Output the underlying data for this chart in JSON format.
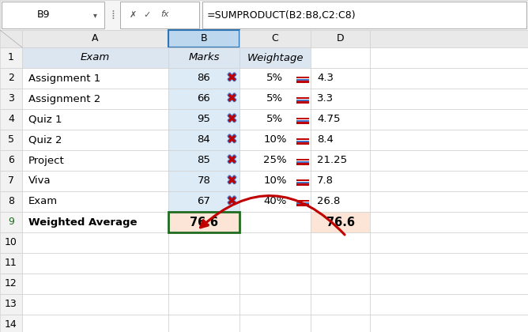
{
  "formula_bar_cell": "B9",
  "formula_bar_formula": "=SUMPRODUCT(B2:B8,C2:C8)",
  "header_row": [
    "Exam",
    "Marks",
    "Weightage",
    ""
  ],
  "data_rows": [
    [
      "Assignment 1",
      "86",
      "5%",
      "4.3"
    ],
    [
      "Assignment 2",
      "66",
      "5%",
      "3.3"
    ],
    [
      "Quiz 1",
      "95",
      "5%",
      "4.75"
    ],
    [
      "Quiz 2",
      "84",
      "10%",
      "8.4"
    ],
    [
      "Project",
      "85",
      "25%",
      "21.25"
    ],
    [
      "Viva",
      "78",
      "10%",
      "7.8"
    ],
    [
      "Exam",
      "67",
      "40%",
      "26.8"
    ]
  ],
  "weighted_avg": "76.6",
  "bg_header_blue": "#dce6f1",
  "bg_col_B_header": "#bdd7ee",
  "bg_col_B_data": "#ddebf7",
  "bg_green": "#e2efda",
  "bg_orange": "#fce4d6",
  "bg_white": "#ffffff",
  "bg_row_num": "#f2f2f2",
  "bg_col_header": "#e9e9e9",
  "ec_normal": "#d0d0d0",
  "ec_selected": "#1f6b1f",
  "ec_col_B": "#2e75b6",
  "arrow_color": "#c00000",
  "fig_w": 6.68,
  "fig_h": 4.2,
  "dpi": 100
}
